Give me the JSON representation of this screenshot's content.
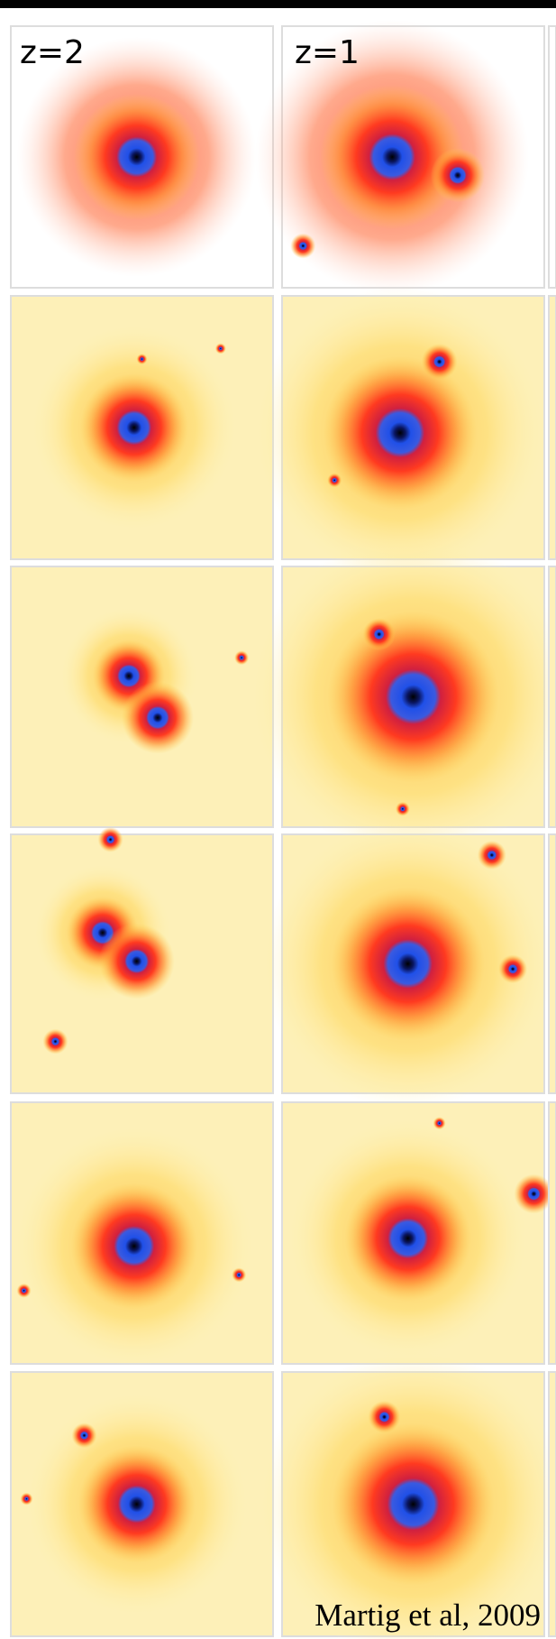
{
  "panels": [
    {
      "label": "z=2"
    },
    {
      "label": "z=1"
    }
  ],
  "credit": "Martig et al, 2009"
}
